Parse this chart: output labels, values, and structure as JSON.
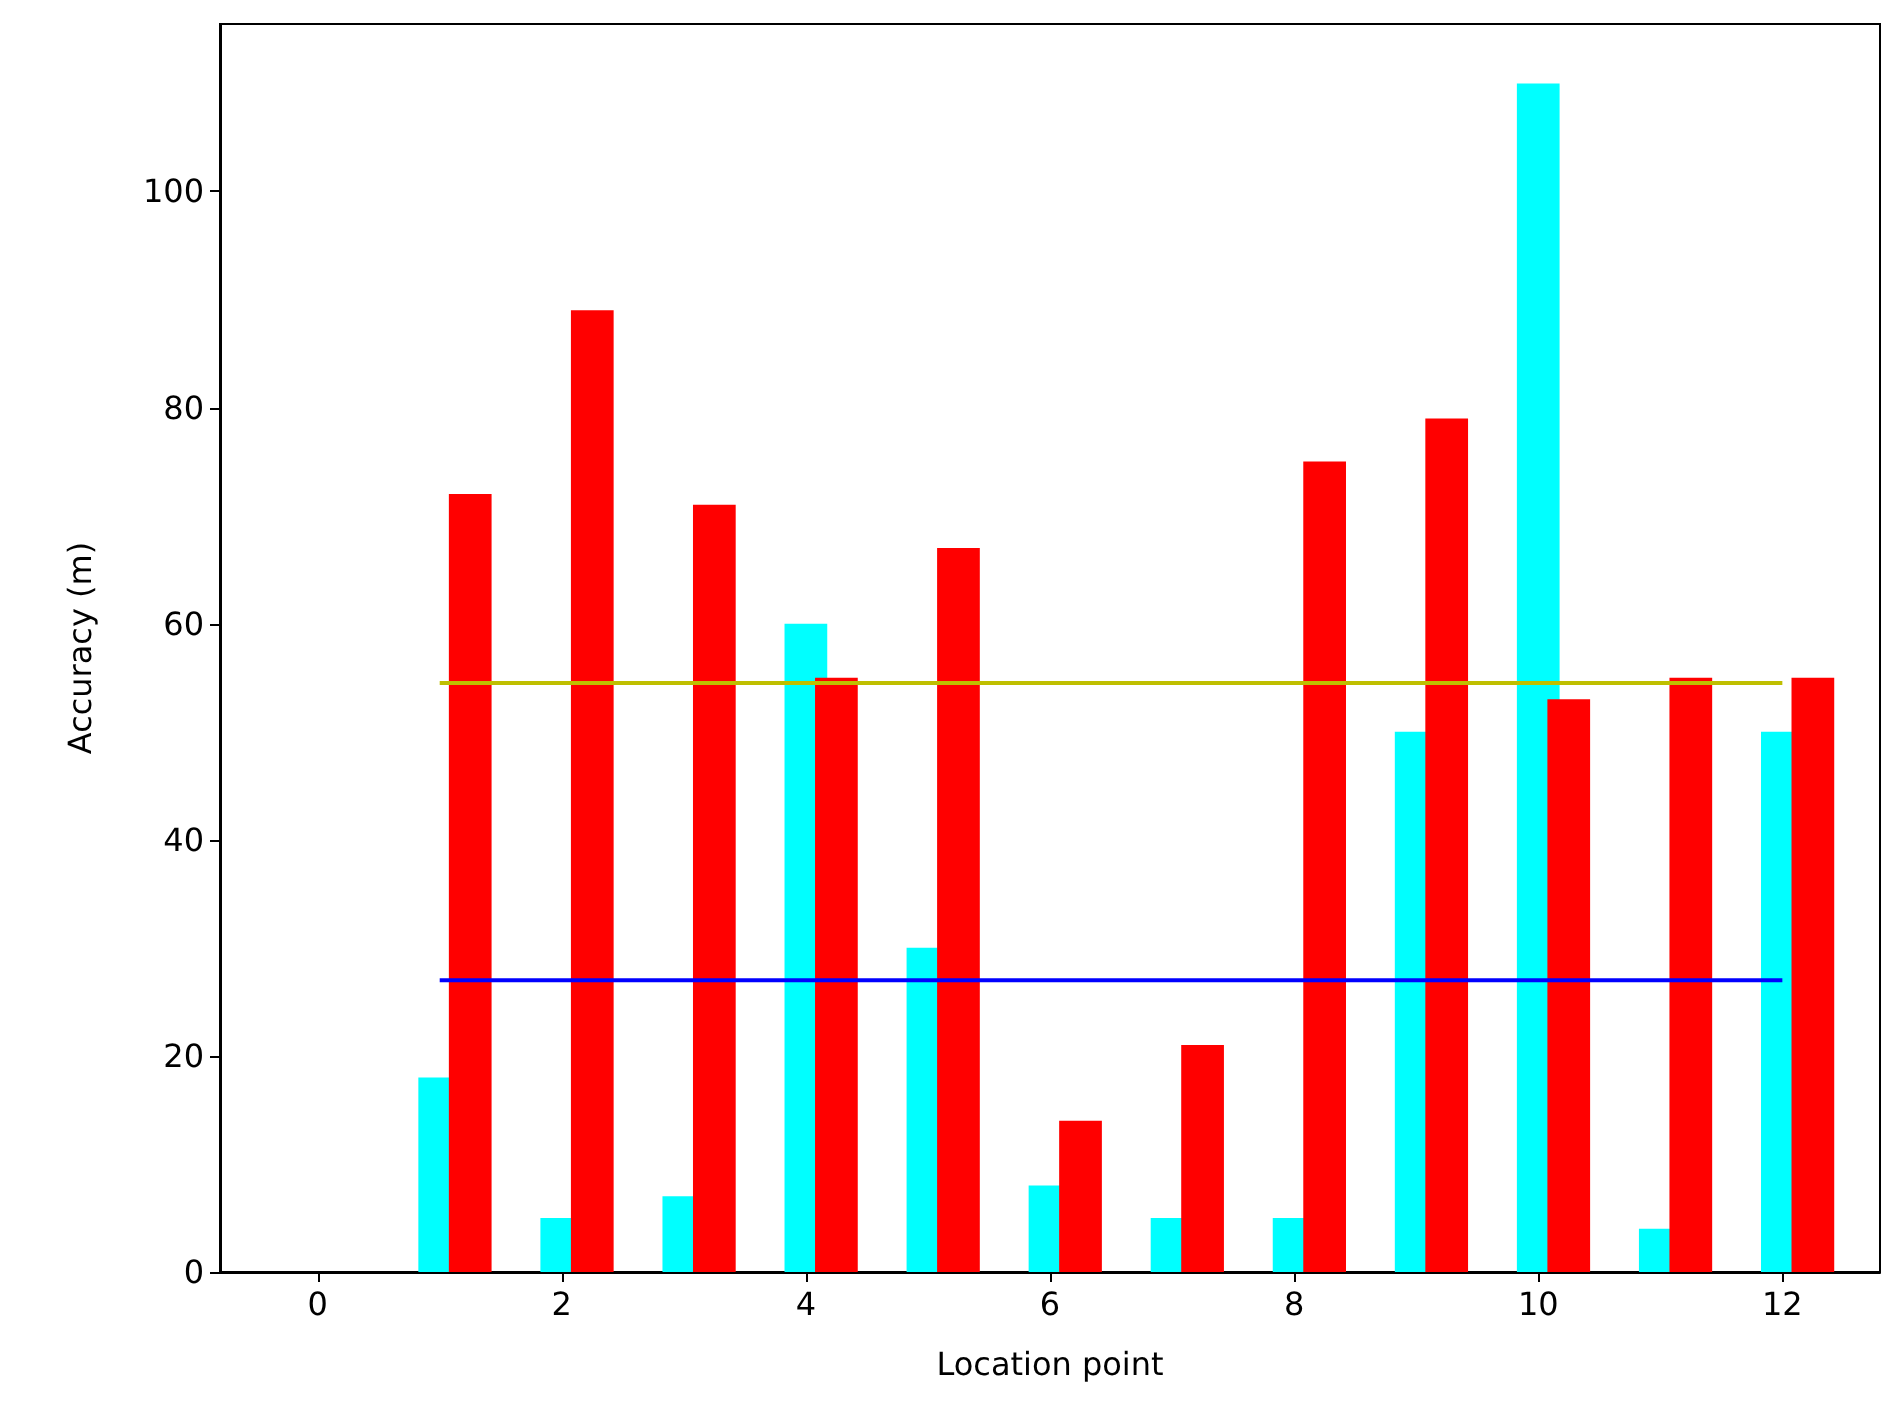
{
  "chart_data": {
    "type": "bar",
    "xlabel": "Location point",
    "ylabel": "Accuracy (m)",
    "xlim": [
      -0.8,
      12.8
    ],
    "xticks": [
      0,
      2,
      4,
      6,
      8,
      10,
      12
    ],
    "ylim": [
      0,
      115.5
    ],
    "yticks": [
      0,
      20,
      40,
      60,
      80,
      100
    ],
    "grid": false,
    "series": [
      {
        "color": "#00ffff",
        "x": [
          1,
          2,
          3,
          4,
          5,
          6,
          7,
          8,
          9,
          10,
          11,
          12
        ],
        "values": [
          18,
          5,
          7,
          60,
          30,
          8,
          5,
          5,
          50,
          110,
          4,
          50
        ]
      },
      {
        "color": "#ff0000",
        "x": [
          1.25,
          2.25,
          3.25,
          4.25,
          5.25,
          6.25,
          7.25,
          8.25,
          9.25,
          10.25,
          11.25,
          12.25
        ],
        "values": [
          72,
          89,
          71,
          55,
          67,
          14,
          21,
          75,
          79,
          53,
          55,
          55
        ]
      },
      {
        "type": "line",
        "color": "#bfbf00",
        "x": [
          1,
          12
        ],
        "values": [
          54.5,
          54.5
        ]
      },
      {
        "type": "line",
        "color": "#0000ff",
        "x": [
          1,
          12
        ],
        "values": [
          27,
          27
        ]
      }
    ]
  }
}
